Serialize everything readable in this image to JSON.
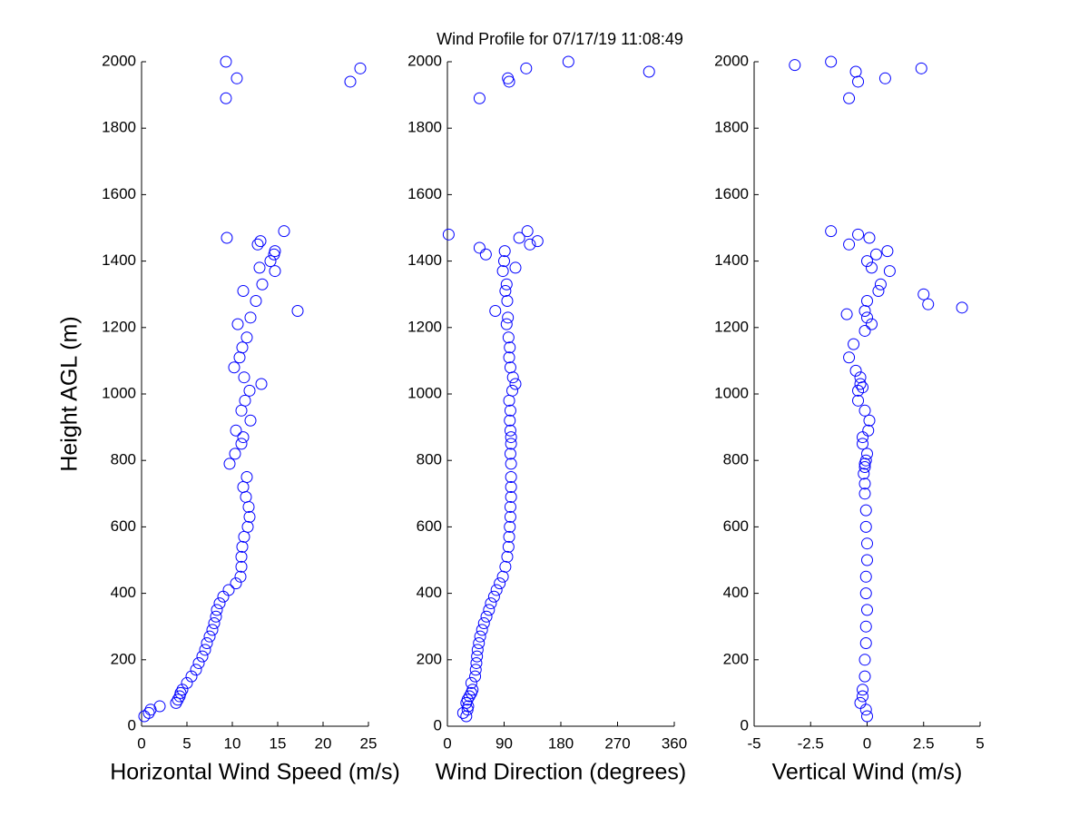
{
  "title": "Wind Profile for  07/17/19 11:08:49",
  "chart_data": [
    {
      "type": "scatter",
      "xlabel": "Horizontal Wind Speed (m/s)",
      "ylabel": "Height AGL (m)",
      "color": "#0000ff",
      "xlim": [
        0,
        25
      ],
      "xticks": [
        0,
        5,
        10,
        15,
        20,
        25
      ],
      "ylim": [
        0,
        2000
      ],
      "yticks": [
        0,
        200,
        400,
        600,
        800,
        1000,
        1200,
        1400,
        1600,
        1800,
        2000
      ],
      "x": [
        0.3,
        0.8,
        1,
        2,
        3.8,
        4,
        4.2,
        4.3,
        4.5,
        5,
        5.5,
        6,
        6.3,
        6.7,
        7,
        7.2,
        7.5,
        7.8,
        8,
        8.2,
        8.3,
        8.6,
        9,
        9.6,
        10.4,
        10.9,
        11,
        11,
        11.1,
        11.3,
        11.7,
        11.9,
        11.8,
        11.5,
        11.2,
        11.6,
        9.7,
        10.3,
        11,
        11.2,
        10.4,
        12,
        11,
        11.4,
        11.9,
        13.2,
        11.3,
        10.2,
        10.8,
        11.1,
        11.6,
        10.6,
        12,
        17.2,
        12.6,
        11.2,
        13.3,
        14.7,
        13,
        14.2,
        14.6,
        14.7,
        12.8,
        13.1,
        9.4,
        15.7,
        9.3,
        23,
        10.5,
        24.1,
        9.3
      ],
      "y": [
        30,
        40,
        50,
        60,
        70,
        80,
        90,
        100,
        110,
        130,
        150,
        170,
        190,
        210,
        230,
        250,
        270,
        290,
        310,
        330,
        350,
        370,
        390,
        410,
        430,
        450,
        480,
        510,
        540,
        570,
        600,
        630,
        660,
        690,
        720,
        750,
        790,
        820,
        850,
        870,
        890,
        920,
        950,
        980,
        1010,
        1030,
        1050,
        1080,
        1110,
        1140,
        1170,
        1210,
        1230,
        1250,
        1280,
        1310,
        1330,
        1370,
        1380,
        1400,
        1420,
        1430,
        1450,
        1460,
        1470,
        1490,
        1890,
        1940,
        1950,
        1980,
        2000
      ]
    },
    {
      "type": "scatter",
      "xlabel": "Wind Direction (degrees)",
      "color": "#0000ff",
      "xlim": [
        0,
        360
      ],
      "xticks": [
        0,
        90,
        180,
        270,
        360
      ],
      "ylim": [
        0,
        2000
      ],
      "yticks": [
        0,
        200,
        400,
        600,
        800,
        1000,
        1200,
        1400,
        1600,
        1800,
        2000
      ],
      "x": [
        30,
        25,
        32,
        33,
        30,
        32,
        35,
        38,
        40,
        38,
        44,
        45,
        46,
        47,
        48,
        50,
        52,
        55,
        58,
        62,
        66,
        69,
        74,
        78,
        83,
        88,
        92,
        95,
        97,
        98,
        99,
        100,
        100,
        101,
        101,
        101,
        101,
        100,
        101,
        101,
        100,
        99,
        100,
        98,
        103,
        108,
        104,
        100,
        98,
        99,
        97,
        94,
        96,
        76,
        95,
        92,
        94,
        88,
        108,
        90,
        61,
        91,
        51,
        131,
        143,
        114,
        2,
        127,
        51,
        98,
        96,
        320,
        125,
        192
      ],
      "y": [
        30,
        40,
        50,
        60,
        70,
        80,
        90,
        100,
        110,
        130,
        150,
        170,
        190,
        210,
        230,
        250,
        270,
        290,
        310,
        330,
        350,
        370,
        390,
        410,
        430,
        450,
        480,
        510,
        540,
        570,
        600,
        630,
        660,
        690,
        720,
        750,
        790,
        820,
        850,
        870,
        890,
        920,
        950,
        980,
        1010,
        1030,
        1050,
        1080,
        1110,
        1140,
        1170,
        1210,
        1230,
        1250,
        1280,
        1310,
        1330,
        1370,
        1380,
        1400,
        1420,
        1430,
        1440,
        1450,
        1460,
        1470,
        1480,
        1490,
        1890,
        1940,
        1950,
        1970,
        1980,
        2000
      ]
    },
    {
      "type": "scatter",
      "xlabel": "Vertical Wind (m/s)",
      "color": "#0000ff",
      "xlim": [
        -5,
        5
      ],
      "xticks": [
        -5,
        -2.5,
        0,
        2.5,
        5
      ],
      "ylim": [
        0,
        2000
      ],
      "yticks": [
        0,
        200,
        400,
        600,
        800,
        1000,
        1200,
        1400,
        1600,
        1800,
        2000
      ],
      "x": [
        0,
        -0.05,
        -0.3,
        -0.2,
        -0.2,
        -0.1,
        -0.1,
        -0.05,
        -0.05,
        0,
        -0.05,
        -0.05,
        0,
        0,
        -0.05,
        -0.05,
        -0.1,
        -0.1,
        -0.15,
        -0.1,
        -0.1,
        -0.05,
        0,
        -0.2,
        -0.2,
        0.05,
        0.1,
        -0.1,
        -0.4,
        -0.4,
        -0.2,
        -0.3,
        -0.3,
        -0.5,
        -0.8,
        -0.6,
        -0.1,
        0.2,
        0,
        -0.1,
        0,
        0.5,
        0.6,
        1,
        0.2,
        0,
        0.4,
        0.9,
        -0.8,
        0.1,
        -0.4,
        -1.6,
        -0.8,
        -0.4,
        0.8,
        -0.5,
        2.4,
        -3.2,
        -1.6,
        2.5,
        2.7,
        4.2,
        -0.9
      ],
      "y": [
        30,
        50,
        70,
        90,
        110,
        150,
        200,
        250,
        300,
        350,
        400,
        450,
        500,
        550,
        600,
        650,
        700,
        730,
        760,
        780,
        790,
        800,
        820,
        850,
        870,
        890,
        920,
        950,
        980,
        1010,
        1020,
        1030,
        1050,
        1070,
        1110,
        1150,
        1190,
        1210,
        1230,
        1250,
        1280,
        1310,
        1330,
        1370,
        1380,
        1400,
        1420,
        1430,
        1450,
        1470,
        1480,
        1490,
        1890,
        1940,
        1950,
        1970,
        1980,
        1990,
        2000,
        1300,
        1270,
        1260,
        1240
      ]
    }
  ]
}
